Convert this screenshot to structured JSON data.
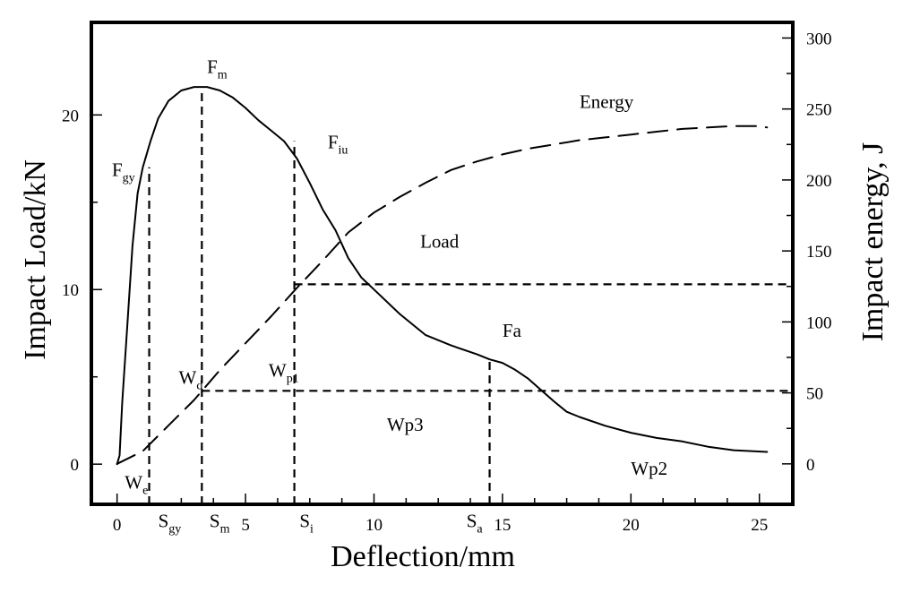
{
  "chart_data": {
    "type": "line",
    "title": "",
    "xlabel": "Deflection/mm",
    "ylabel_left": "Impact Load/kN",
    "ylabel_right": "Impact energy, J",
    "xlim": [
      -1.0,
      26.3
    ],
    "ylim_left": [
      -2.3,
      25.3
    ],
    "ylim_right": [
      -28.5,
      311.0
    ],
    "x_ticks": [
      0,
      5,
      10,
      15,
      20,
      25
    ],
    "x_tick_labels": [
      "0",
      "5",
      "10",
      "15",
      "20",
      "25"
    ],
    "x_minor_ticks": [
      1.25,
      2.5,
      3.75,
      6.25,
      7.5,
      8.75,
      11.25,
      12.5,
      13.75,
      16.25,
      17.5,
      18.75,
      21.25,
      22.5,
      23.75
    ],
    "y_left_ticks": [
      0,
      10,
      20
    ],
    "y_left_tick_labels": [
      "0",
      "10",
      "20"
    ],
    "y_left_minor_ticks": [
      5,
      15
    ],
    "y_right_ticks": [
      0,
      50,
      100,
      150,
      200,
      250,
      300
    ],
    "y_right_tick_labels": [
      "0",
      "50",
      "100",
      "150",
      "200",
      "250",
      "300"
    ],
    "y_right_minor_ticks": [
      25,
      75,
      125,
      175,
      225,
      275
    ],
    "series": [
      {
        "name": "Load",
        "axis": "left",
        "style": "solid",
        "x": [
          0.0,
          0.1,
          0.2,
          0.4,
          0.6,
          0.8,
          1.0,
          1.3,
          1.6,
          2.0,
          2.5,
          3.0,
          3.5,
          4.0,
          4.5,
          5.0,
          5.5,
          6.0,
          6.5,
          7.0,
          7.5,
          8.0,
          8.5,
          9.0,
          9.5,
          10.0,
          11.0,
          12.0,
          13.0,
          14.0,
          14.5,
          15.0,
          15.5,
          16.0,
          17.0,
          17.5,
          18.0,
          19.0,
          20.0,
          21.0,
          22.0,
          23.0,
          24.0,
          25.3
        ],
        "y": [
          0.0,
          0.5,
          3.5,
          8.0,
          12.5,
          15.5,
          17.0,
          18.5,
          19.8,
          20.8,
          21.4,
          21.6,
          21.6,
          21.4,
          21.0,
          20.4,
          19.7,
          19.1,
          18.5,
          17.5,
          16.1,
          14.6,
          13.4,
          11.8,
          10.7,
          10.0,
          8.6,
          7.4,
          6.8,
          6.3,
          6.0,
          5.8,
          5.4,
          4.9,
          3.6,
          3.0,
          2.7,
          2.2,
          1.8,
          1.5,
          1.3,
          1.0,
          0.8,
          0.7
        ]
      },
      {
        "name": "Energy",
        "axis": "right",
        "style": "dashed",
        "x": [
          0.0,
          1.0,
          2.0,
          3.0,
          4.0,
          5.0,
          6.0,
          7.0,
          8.0,
          9.0,
          10.0,
          11.0,
          12.0,
          13.0,
          14.0,
          15.0,
          16.0,
          17.0,
          18.0,
          19.0,
          20.0,
          21.0,
          22.0,
          23.0,
          24.0,
          25.0,
          25.3
        ],
        "y": [
          0,
          9,
          27,
          45,
          66,
          85,
          104,
          124,
          143,
          163,
          177,
          188,
          198,
          207,
          213,
          218,
          222,
          225,
          228,
          230,
          232,
          234,
          236,
          237,
          238,
          238,
          237
        ]
      }
    ],
    "reference_lines": [
      {
        "orientation": "vertical",
        "x": 1.25,
        "y_to_load": 17.0
      },
      {
        "orientation": "vertical",
        "x": 3.3,
        "y_to_load": 21.6
      },
      {
        "orientation": "vertical",
        "x": 6.9,
        "y_to_load": 18.5
      },
      {
        "orientation": "vertical",
        "x": 14.5,
        "y_to_load": 6.0
      },
      {
        "orientation": "horizontal",
        "y_load": 10.3,
        "x_from": 6.9
      },
      {
        "orientation": "horizontal",
        "y_load": 4.2,
        "x_from": 3.3
      }
    ],
    "annotations": [
      {
        "text": "F",
        "sub": "m",
        "x": 3.5,
        "y_load": 22.4
      },
      {
        "text": "F",
        "sub": "gy",
        "x": -0.2,
        "y_load": 16.5
      },
      {
        "text": "F",
        "sub": "iu",
        "x": 8.2,
        "y_load": 18.1
      },
      {
        "text": "Energy",
        "x": 18.0,
        "y_load": 20.4
      },
      {
        "text": "Load",
        "x": 11.8,
        "y_load": 12.4
      },
      {
        "text": "Fa",
        "x": 15.0,
        "y_load": 7.3
      },
      {
        "text": "W",
        "sub": "d",
        "x": 2.4,
        "y_load": 4.6
      },
      {
        "text": "W",
        "sub": "p1",
        "x": 5.9,
        "y_load": 5.0
      },
      {
        "text": "Wp3",
        "x": 10.5,
        "y_load": 1.9
      },
      {
        "text": "Wp2",
        "x": 20.0,
        "y_load": -0.6
      },
      {
        "text": "W",
        "sub": "e",
        "x": 0.3,
        "y_load": -1.4
      },
      {
        "text": "S",
        "sub": "gy",
        "x": 1.6,
        "y_load": -3.6
      },
      {
        "text": "S",
        "sub": "m",
        "x": 3.6,
        "y_load": -3.6
      },
      {
        "text": "S",
        "sub": "i",
        "x": 7.1,
        "y_load": -3.6
      },
      {
        "text": "S",
        "sub": "a",
        "x": 13.6,
        "y_load": -3.6
      }
    ],
    "grid": false,
    "legend": "none"
  }
}
